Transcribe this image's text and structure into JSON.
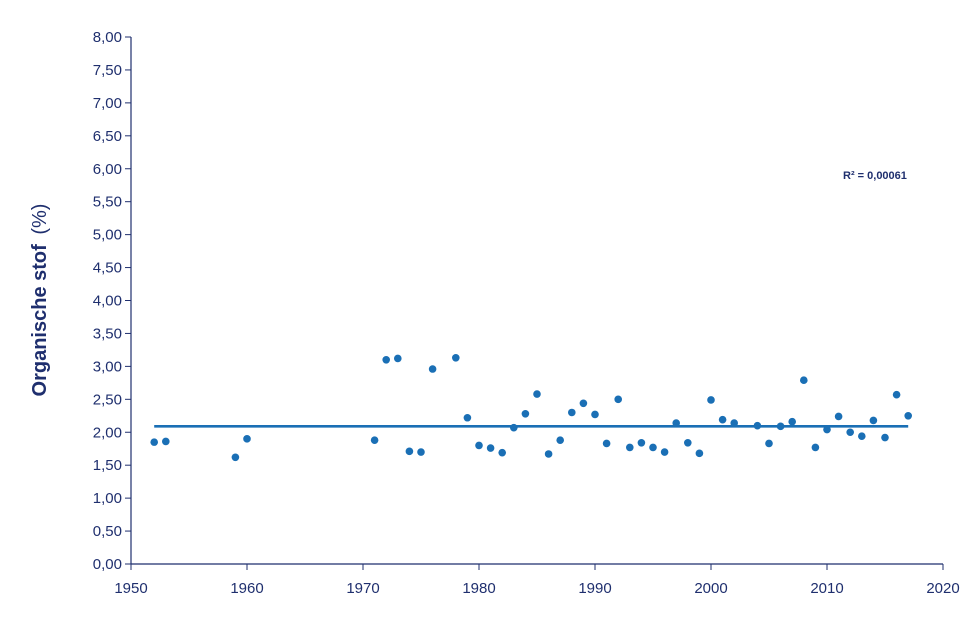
{
  "chart_data": {
    "type": "scatter",
    "title": "",
    "xlabel": "",
    "ylabel": "Organische stof",
    "ylabel_unit": "(%)",
    "xlim": [
      1950,
      2020
    ],
    "ylim": [
      0,
      8
    ],
    "x_ticks": [
      "1950",
      "1960",
      "1970",
      "1980",
      "1990",
      "2000",
      "2010",
      "2020"
    ],
    "y_ticks": [
      "0,00",
      "0,50",
      "1,00",
      "1,50",
      "2,00",
      "2,50",
      "3,00",
      "3,50",
      "4,00",
      "4,50",
      "5,00",
      "5,50",
      "6,00",
      "6,50",
      "7,00",
      "7,50",
      "8,00"
    ],
    "grid": false,
    "annotation": "R² = 0,00061",
    "trendline": {
      "x": [
        1952,
        2017
      ],
      "y": [
        2.09,
        2.09
      ]
    },
    "points": [
      {
        "x": 1952,
        "y": 1.85
      },
      {
        "x": 1953,
        "y": 1.86
      },
      {
        "x": 1959,
        "y": 1.62
      },
      {
        "x": 1960,
        "y": 1.9
      },
      {
        "x": 1971,
        "y": 1.88
      },
      {
        "x": 1972,
        "y": 3.1
      },
      {
        "x": 1973,
        "y": 3.12
      },
      {
        "x": 1974,
        "y": 1.71
      },
      {
        "x": 1975,
        "y": 1.7
      },
      {
        "x": 1976,
        "y": 2.96
      },
      {
        "x": 1978,
        "y": 3.13
      },
      {
        "x": 1979,
        "y": 2.22
      },
      {
        "x": 1980,
        "y": 1.8
      },
      {
        "x": 1981,
        "y": 1.76
      },
      {
        "x": 1982,
        "y": 1.69
      },
      {
        "x": 1983,
        "y": 2.07
      },
      {
        "x": 1984,
        "y": 2.28
      },
      {
        "x": 1985,
        "y": 2.58
      },
      {
        "x": 1986,
        "y": 1.67
      },
      {
        "x": 1987,
        "y": 1.88
      },
      {
        "x": 1988,
        "y": 2.3
      },
      {
        "x": 1989,
        "y": 2.44
      },
      {
        "x": 1990,
        "y": 2.27
      },
      {
        "x": 1991,
        "y": 1.83
      },
      {
        "x": 1992,
        "y": 2.5
      },
      {
        "x": 1993,
        "y": 1.77
      },
      {
        "x": 1994,
        "y": 1.84
      },
      {
        "x": 1995,
        "y": 1.77
      },
      {
        "x": 1996,
        "y": 1.7
      },
      {
        "x": 1997,
        "y": 2.14
      },
      {
        "x": 1998,
        "y": 1.84
      },
      {
        "x": 1999,
        "y": 1.68
      },
      {
        "x": 2000,
        "y": 2.49
      },
      {
        "x": 2001,
        "y": 2.19
      },
      {
        "x": 2002,
        "y": 2.14
      },
      {
        "x": 2004,
        "y": 2.1
      },
      {
        "x": 2005,
        "y": 1.83
      },
      {
        "x": 2006,
        "y": 2.09
      },
      {
        "x": 2007,
        "y": 2.16
      },
      {
        "x": 2008,
        "y": 2.79
      },
      {
        "x": 2009,
        "y": 1.77
      },
      {
        "x": 2010,
        "y": 2.04
      },
      {
        "x": 2011,
        "y": 2.24
      },
      {
        "x": 2012,
        "y": 2.0
      },
      {
        "x": 2013,
        "y": 1.94
      },
      {
        "x": 2014,
        "y": 2.18
      },
      {
        "x": 2015,
        "y": 1.92
      },
      {
        "x": 2016,
        "y": 2.57
      },
      {
        "x": 2017,
        "y": 2.25
      }
    ],
    "colors": {
      "points": "#1a6fb5",
      "trendline": "#1a6fb5",
      "axis": "#1f2f6e",
      "text": "#1f2f6e"
    }
  }
}
